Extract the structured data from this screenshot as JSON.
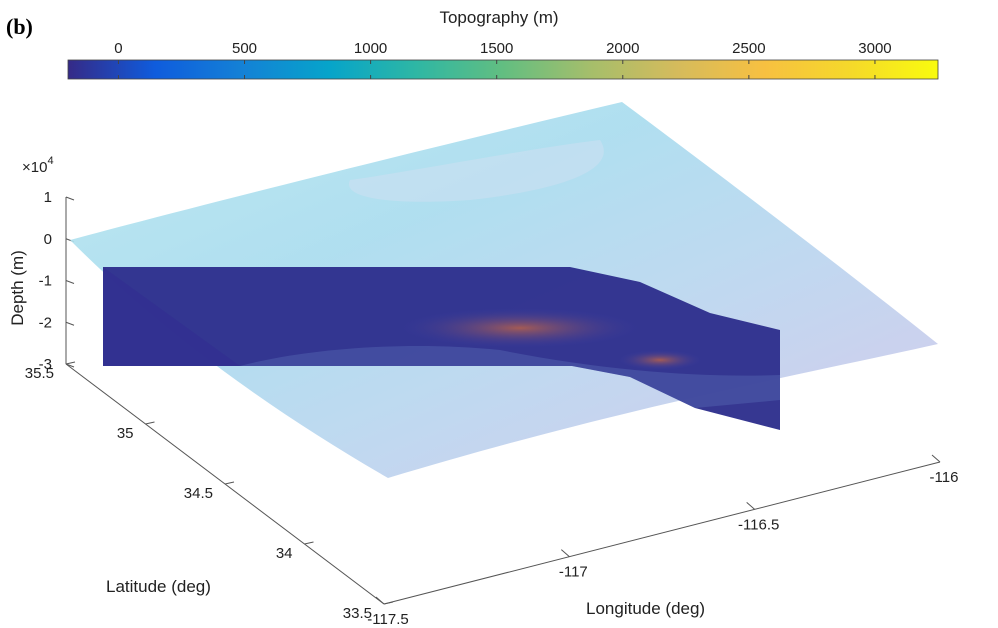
{
  "panel_label": "(b)",
  "chart_data": {
    "type": "surface-3d",
    "title": "",
    "colorbar": {
      "label": "Topography (m)",
      "ticks": [
        "0",
        "500",
        "1000",
        "1500",
        "2000",
        "2500",
        "3000"
      ],
      "range": [
        -200,
        3250
      ],
      "colormap": "parula"
    },
    "axes": {
      "z": {
        "label": "Depth (m)",
        "multiplier_base": "×10",
        "multiplier_exp": "4",
        "ticks": [
          "1",
          "0",
          "-1",
          "-2",
          "-3"
        ],
        "range": [
          -3,
          1
        ]
      },
      "y": {
        "label": "Latitude (deg)",
        "ticks": [
          "35.5",
          "35",
          "34.5",
          "34",
          "33.5"
        ],
        "range": [
          33.5,
          35.5
        ]
      },
      "x": {
        "label": "Longitude (deg)",
        "ticks": [
          "-117.5",
          "-117",
          "-116.5",
          "-116"
        ],
        "range": [
          -117.5,
          -116
        ]
      }
    },
    "series": [
      {
        "element": "topography surface",
        "depth": 0
      },
      {
        "element": "fault plane cross-section",
        "depth_range": [
          -3,
          -1
        ]
      }
    ]
  }
}
